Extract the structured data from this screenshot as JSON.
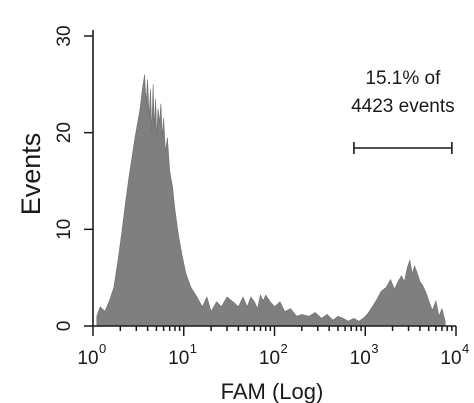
{
  "chart_data": {
    "type": "area",
    "title": "",
    "xlabel": "FAM (Log)",
    "ylabel": "Events",
    "xscale": "log",
    "xlim": [
      1,
      10000
    ],
    "ylim": [
      0,
      30
    ],
    "yticks": [
      0,
      10,
      20,
      30
    ],
    "xticks": [
      {
        "value": 1,
        "base": "10",
        "exp": "0"
      },
      {
        "value": 10,
        "base": "10",
        "exp": "1"
      },
      {
        "value": 100,
        "base": "10",
        "exp": "2"
      },
      {
        "value": 1000,
        "base": "10",
        "exp": "3"
      },
      {
        "value": 10000,
        "base": "10",
        "exp": "4"
      }
    ],
    "fill_color": "#7f7f7f",
    "series": [
      {
        "x": [
          1.1,
          1.2,
          1.35,
          1.5,
          1.7,
          1.9,
          2.1,
          2.3,
          2.5,
          2.7,
          2.9,
          3.1,
          3.3,
          3.5,
          3.7,
          3.85,
          4.0,
          4.15,
          4.3,
          4.45,
          4.6,
          4.75,
          4.9,
          5.05,
          5.2,
          5.4,
          5.6,
          5.8,
          6.0,
          6.3,
          6.6,
          7.0,
          7.5,
          8.0,
          8.7,
          9.5,
          10.5,
          12,
          14,
          16,
          18,
          20,
          23,
          26,
          30,
          35,
          40,
          45,
          50,
          55,
          60,
          65,
          70,
          75,
          80,
          90,
          100,
          115,
          130,
          150,
          175,
          200,
          240,
          280,
          330,
          380,
          440,
          500,
          570,
          650,
          750,
          850,
          950,
          1050,
          1200,
          1350,
          1500,
          1700,
          1900,
          2100,
          2300,
          2500,
          2700,
          2900,
          3100,
          3300,
          3500,
          3700,
          4000,
          4300,
          4700,
          5100,
          5500,
          6000,
          6500,
          7000,
          7600
        ],
        "y": [
          1.0,
          2.0,
          1.5,
          2.5,
          4.0,
          7.0,
          10.0,
          13.0,
          15.5,
          17.5,
          19.5,
          21.0,
          22.5,
          24.5,
          26.0,
          23.0,
          25.5,
          21.5,
          24.5,
          20.0,
          25.0,
          20.5,
          23.5,
          19.5,
          22.5,
          21.0,
          23.0,
          19.5,
          21.5,
          18.0,
          19.5,
          16.0,
          14.5,
          12.0,
          9.5,
          7.5,
          5.5,
          4.0,
          3.0,
          2.0,
          3.0,
          1.5,
          2.5,
          2.0,
          3.0,
          2.5,
          2.0,
          3.0,
          2.0,
          3.0,
          2.5,
          1.8,
          3.2,
          2.6,
          3.2,
          2.5,
          2.0,
          2.5,
          1.5,
          1.8,
          1.0,
          1.2,
          1.0,
          1.4,
          0.8,
          1.2,
          0.6,
          1.0,
          0.8,
          0.5,
          0.8,
          0.5,
          0.8,
          1.2,
          2.0,
          2.8,
          3.6,
          4.0,
          4.8,
          3.8,
          4.6,
          5.2,
          4.6,
          6.0,
          6.8,
          5.4,
          6.2,
          5.6,
          4.6,
          4.2,
          3.4,
          2.4,
          1.6,
          2.6,
          1.0,
          1.8,
          0.5
        ]
      }
    ],
    "annotations": [
      {
        "lines": [
          "15.1% of",
          "4423 events"
        ],
        "gate": [
          750,
          9000
        ]
      }
    ]
  }
}
